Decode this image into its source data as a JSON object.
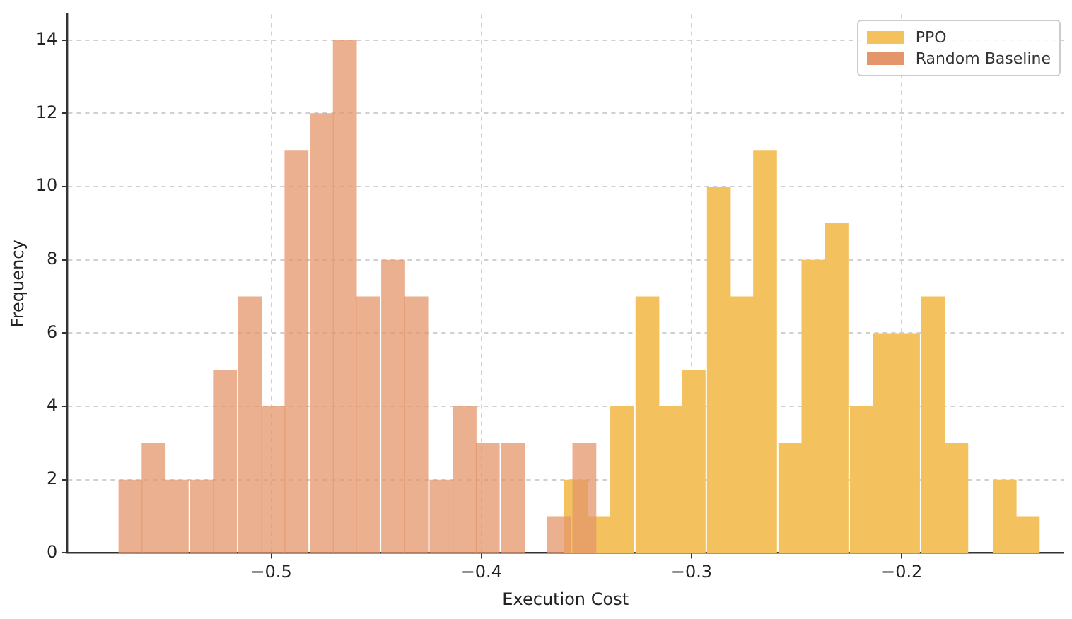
{
  "chart_data": {
    "type": "bar",
    "xlabel": "Execution Cost",
    "ylabel": "Frequency",
    "xlim": [
      -0.597,
      -0.123
    ],
    "ylim": [
      0,
      14.7
    ],
    "xticks": [
      {
        "value": -0.5,
        "label": "−0.5"
      },
      {
        "value": -0.4,
        "label": "−0.4"
      },
      {
        "value": -0.3,
        "label": "−0.3"
      },
      {
        "value": -0.2,
        "label": "−0.2"
      }
    ],
    "yticks": [
      0,
      2,
      4,
      6,
      8,
      10,
      12,
      14
    ],
    "grid": true,
    "legend": "top right",
    "series": [
      {
        "name": "PPO",
        "color": "#f3c15d",
        "x": [
          -0.355,
          -0.344,
          -0.333,
          -0.321,
          -0.31,
          -0.299,
          -0.287,
          -0.276,
          -0.265,
          -0.253,
          -0.242,
          -0.231,
          -0.219,
          -0.208,
          -0.197,
          -0.185,
          -0.174,
          -0.163,
          -0.151,
          -0.14
        ],
        "values": [
          2,
          1,
          4,
          7,
          4,
          5,
          10,
          7,
          11,
          3,
          8,
          9,
          4,
          6,
          6,
          7,
          3,
          0,
          2,
          1
        ]
      },
      {
        "name": "Random Baseline",
        "color": "#e4956a",
        "x": [
          -0.567,
          -0.556,
          -0.545,
          -0.533,
          -0.522,
          -0.51,
          -0.499,
          -0.488,
          -0.476,
          -0.465,
          -0.454,
          -0.442,
          -0.431,
          -0.419,
          -0.408,
          -0.397,
          -0.385,
          -0.374,
          -0.363,
          -0.351
        ],
        "values": [
          2,
          3,
          2,
          2,
          5,
          7,
          4,
          11,
          12,
          14,
          7,
          8,
          7,
          2,
          4,
          3,
          3,
          0,
          1,
          3
        ]
      }
    ]
  }
}
